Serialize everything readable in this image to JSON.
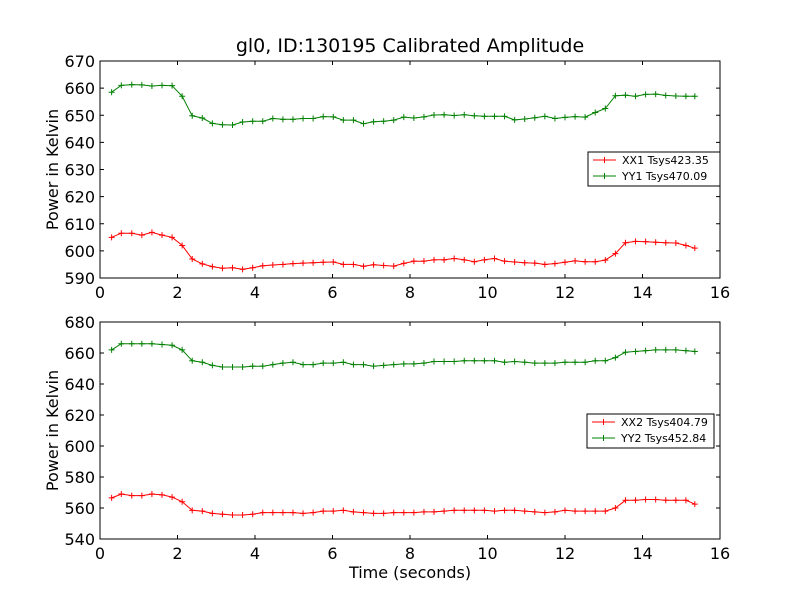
{
  "figure": {
    "title": "gl0, ID:130195 Calibrated Amplitude"
  },
  "chart_data": [
    {
      "type": "line",
      "title": "gl0, ID:130195 Calibrated Amplitude",
      "xlabel": "",
      "ylabel": "Power in Kelvin",
      "xlim": [
        0,
        16
      ],
      "ylim": [
        590,
        670
      ],
      "xticks": [
        0,
        2,
        4,
        6,
        8,
        10,
        12,
        14,
        16
      ],
      "yticks": [
        590,
        600,
        610,
        620,
        630,
        640,
        650,
        660,
        670
      ],
      "grid": false,
      "legend_position": "center-right",
      "x": [
        0.3,
        0.55,
        0.82,
        1.08,
        1.34,
        1.6,
        1.86,
        2.12,
        2.38,
        2.64,
        2.9,
        3.16,
        3.42,
        3.68,
        3.94,
        4.2,
        4.46,
        4.72,
        4.98,
        5.24,
        5.5,
        5.76,
        6.02,
        6.28,
        6.54,
        6.8,
        7.06,
        7.32,
        7.58,
        7.84,
        8.1,
        8.36,
        8.62,
        8.88,
        9.14,
        9.4,
        9.66,
        9.92,
        10.18,
        10.44,
        10.7,
        10.96,
        11.22,
        11.48,
        11.74,
        12.0,
        12.26,
        12.52,
        12.78,
        13.04,
        13.3,
        13.56,
        13.82,
        14.08,
        14.34,
        14.6,
        14.86,
        15.12,
        15.35
      ],
      "series": [
        {
          "name": "XX1 Tsys423.35",
          "color": "#ff0000",
          "values": [
            605.0,
            606.5,
            606.5,
            605.8,
            606.8,
            605.8,
            605.0,
            602.0,
            597.0,
            595.2,
            594.2,
            593.6,
            593.8,
            593.2,
            593.8,
            594.5,
            594.8,
            595.0,
            595.3,
            595.5,
            595.6,
            595.8,
            595.9,
            595.0,
            595.0,
            594.3,
            594.9,
            594.6,
            594.4,
            595.4,
            596.2,
            596.2,
            596.7,
            596.7,
            597.2,
            596.7,
            596.0,
            596.7,
            597.2,
            596.2,
            595.9,
            595.6,
            595.5,
            595.0,
            595.3,
            595.8,
            596.3,
            596.0,
            596.0,
            596.6,
            599.0,
            603.0,
            603.5,
            603.4,
            603.2,
            603.0,
            602.9,
            602.0,
            601.0
          ]
        },
        {
          "name": "YY1 Tsys470.09",
          "color": "#008000",
          "values": [
            658.5,
            661.0,
            661.3,
            661.2,
            660.8,
            661.0,
            660.9,
            657.0,
            649.8,
            649.0,
            647.0,
            646.5,
            646.4,
            647.5,
            647.8,
            647.8,
            648.8,
            648.5,
            648.5,
            648.8,
            648.8,
            649.5,
            649.4,
            648.2,
            648.2,
            646.9,
            647.6,
            647.8,
            648.2,
            649.3,
            649.0,
            649.4,
            650.1,
            650.2,
            649.9,
            650.2,
            649.8,
            649.6,
            649.6,
            649.6,
            648.3,
            648.6,
            649.1,
            649.6,
            648.8,
            649.2,
            649.5,
            649.3,
            651.0,
            652.5,
            657.2,
            657.4,
            657.0,
            657.7,
            657.8,
            657.3,
            657.1,
            657.0,
            657.0
          ]
        }
      ]
    },
    {
      "type": "line",
      "title": "",
      "xlabel": "Time (seconds)",
      "ylabel": "Power in Kelvin",
      "xlim": [
        0,
        16
      ],
      "ylim": [
        540,
        680
      ],
      "xticks": [
        0,
        2,
        4,
        6,
        8,
        10,
        12,
        14,
        16
      ],
      "yticks": [
        540,
        560,
        580,
        600,
        620,
        640,
        660,
        680
      ],
      "grid": false,
      "legend_position": "center-right",
      "x": [
        0.3,
        0.55,
        0.82,
        1.08,
        1.34,
        1.6,
        1.86,
        2.12,
        2.38,
        2.64,
        2.9,
        3.16,
        3.42,
        3.68,
        3.94,
        4.2,
        4.46,
        4.72,
        4.98,
        5.24,
        5.5,
        5.76,
        6.02,
        6.28,
        6.54,
        6.8,
        7.06,
        7.32,
        7.58,
        7.84,
        8.1,
        8.36,
        8.62,
        8.88,
        9.14,
        9.4,
        9.66,
        9.92,
        10.18,
        10.44,
        10.7,
        10.96,
        11.22,
        11.48,
        11.74,
        12.0,
        12.26,
        12.52,
        12.78,
        13.04,
        13.3,
        13.56,
        13.82,
        14.08,
        14.34,
        14.6,
        14.86,
        15.12,
        15.35
      ],
      "series": [
        {
          "name": "XX2 Tsys404.79",
          "color": "#ff0000",
          "values": [
            566.5,
            569.0,
            568.0,
            568.0,
            569.0,
            568.5,
            567.0,
            564.0,
            558.5,
            558.0,
            556.5,
            556.0,
            555.5,
            555.5,
            556.0,
            557.0,
            557.0,
            557.0,
            557.0,
            556.5,
            557.0,
            558.0,
            558.0,
            558.5,
            557.5,
            557.0,
            556.5,
            556.5,
            557.0,
            557.0,
            557.0,
            557.5,
            557.5,
            558.0,
            558.5,
            558.5,
            558.5,
            558.5,
            558.0,
            558.5,
            558.5,
            558.0,
            557.5,
            557.0,
            557.5,
            558.5,
            558.0,
            558.0,
            558.0,
            558.0,
            560.0,
            565.0,
            565.0,
            565.5,
            565.5,
            565.0,
            565.0,
            565.0,
            562.5
          ]
        },
        {
          "name": "YY2 Tsys452.84",
          "color": "#008000",
          "values": [
            662.0,
            666.0,
            666.0,
            666.0,
            666.0,
            665.5,
            665.0,
            662.0,
            655.0,
            654.0,
            652.0,
            651.0,
            651.0,
            651.0,
            651.5,
            651.5,
            652.5,
            653.5,
            654.0,
            652.5,
            652.5,
            653.5,
            653.5,
            654.0,
            652.5,
            652.5,
            651.5,
            652.0,
            652.5,
            653.0,
            653.0,
            653.5,
            654.5,
            654.5,
            654.5,
            655.0,
            655.0,
            655.0,
            655.0,
            654.0,
            654.5,
            654.0,
            653.5,
            653.5,
            653.5,
            654.0,
            654.0,
            654.0,
            655.0,
            655.0,
            657.0,
            660.5,
            661.0,
            661.5,
            662.0,
            662.0,
            662.0,
            661.5,
            661.0
          ]
        }
      ]
    }
  ]
}
